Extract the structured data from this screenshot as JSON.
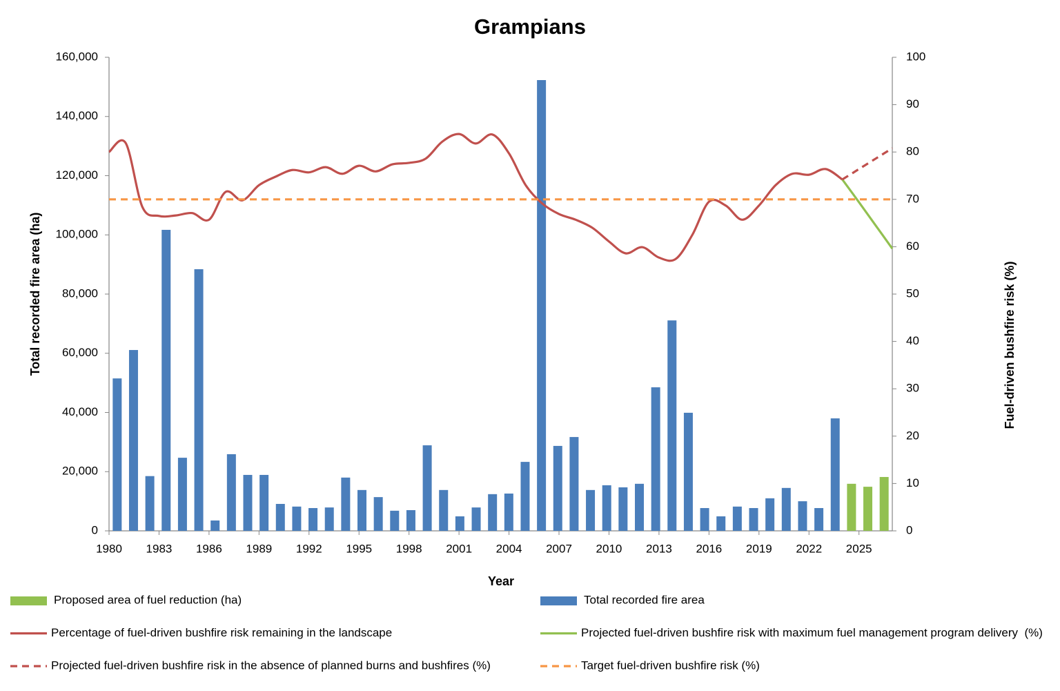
{
  "chart_data": {
    "type": "combo",
    "title": "Grampians",
    "x_label": "Year",
    "y_label": "Total recorded fire area (ha)",
    "y2_label": "Fuel-driven bushfire risk (%)",
    "x": [
      1980,
      1981,
      1982,
      1983,
      1984,
      1985,
      1986,
      1987,
      1988,
      1989,
      1990,
      1991,
      1992,
      1993,
      1994,
      1995,
      1996,
      1997,
      1998,
      1999,
      2000,
      2001,
      2002,
      2003,
      2004,
      2005,
      2006,
      2007,
      2008,
      2009,
      2010,
      2011,
      2012,
      2013,
      2014,
      2015,
      2016,
      2017,
      2018,
      2019,
      2020,
      2021,
      2022,
      2023,
      2024,
      2025,
      2026,
      2027
    ],
    "xlim": [
      1980,
      2027
    ],
    "xticks": [
      1980,
      1983,
      1986,
      1989,
      1992,
      1995,
      1998,
      2001,
      2004,
      2007,
      2010,
      2013,
      2016,
      2019,
      2022,
      2025
    ],
    "ylim": [
      0,
      160000
    ],
    "yticks": [
      0,
      {
        "value": 20000,
        "label": "20,000"
      },
      {
        "value": 40000,
        "label": "40,000"
      },
      {
        "value": 60000,
        "label": "60,000"
      },
      {
        "value": 80000,
        "label": "80,000"
      },
      {
        "value": 100000,
        "label": "100,000"
      },
      {
        "value": 120000,
        "label": "120,000"
      },
      {
        "value": 140000,
        "label": "140,000"
      },
      {
        "value": 160000,
        "label": "160,000"
      }
    ],
    "y2lim": [
      0,
      100
    ],
    "y2ticks": [
      0,
      10,
      20,
      30,
      40,
      50,
      60,
      70,
      80,
      90,
      100
    ],
    "series": [
      {
        "name": "Proposed area of fuel reduction (ha)",
        "kind": "bar",
        "color": "#92c050",
        "values": [
          null,
          null,
          null,
          null,
          null,
          null,
          null,
          null,
          null,
          null,
          null,
          null,
          null,
          null,
          null,
          null,
          null,
          null,
          null,
          null,
          null,
          null,
          null,
          null,
          null,
          null,
          null,
          null,
          null,
          null,
          null,
          null,
          null,
          null,
          null,
          null,
          null,
          null,
          null,
          null,
          null,
          null,
          null,
          null,
          null,
          15900,
          14900,
          18200
        ]
      },
      {
        "name": "Total recorded fire area",
        "kind": "bar",
        "color": "#4a7ebb",
        "values": [
          51500,
          61100,
          18500,
          101700,
          24700,
          88400,
          3500,
          25900,
          18900,
          18900,
          9100,
          8200,
          7700,
          7900,
          18000,
          13800,
          11400,
          6800,
          7000,
          28900,
          13800,
          4900,
          7900,
          12400,
          12600,
          23300,
          152300,
          28700,
          31700,
          13800,
          15400,
          14700,
          15900,
          48500,
          71100,
          39900,
          7700,
          4900,
          8200,
          7700,
          11000,
          14500,
          10000,
          7700,
          38000,
          null,
          null,
          null
        ]
      },
      {
        "name": "Percentage of fuel-driven bushfire risk remaining in the landscape",
        "kind": "line",
        "axis": "y2",
        "color": "#c0504d",
        "dashed": false,
        "values": [
          80.0,
          81.9,
          68.4,
          66.5,
          66.6,
          67.1,
          65.7,
          71.6,
          69.8,
          73.0,
          74.8,
          76.2,
          75.7,
          76.8,
          75.4,
          77.1,
          75.9,
          77.4,
          77.7,
          78.6,
          82.2,
          83.8,
          81.8,
          83.7,
          79.7,
          73.0,
          69.1,
          66.9,
          65.7,
          64.0,
          61.1,
          58.6,
          59.9,
          57.7,
          57.4,
          62.5,
          69.5,
          68.7,
          65.7,
          68.7,
          73.0,
          75.4,
          75.2,
          76.4,
          74.2,
          null,
          null,
          null
        ]
      },
      {
        "name": "Projected fuel-driven bushfire risk with maximum fuel management program delivery  (%)",
        "kind": "line",
        "axis": "y2",
        "color": "#92c050",
        "dashed": false,
        "values": [
          null,
          null,
          null,
          null,
          null,
          null,
          null,
          null,
          null,
          null,
          null,
          null,
          null,
          null,
          null,
          null,
          null,
          null,
          null,
          null,
          null,
          null,
          null,
          null,
          null,
          null,
          null,
          null,
          null,
          null,
          null,
          null,
          null,
          null,
          null,
          null,
          null,
          null,
          null,
          null,
          null,
          null,
          null,
          null,
          74.2,
          69.4,
          64.5,
          59.6
        ]
      },
      {
        "name": "Projected fuel-driven bushfire risk in the absence of planned burns and bushfires (%)",
        "kind": "line",
        "axis": "y2",
        "color": "#c0504d",
        "dashed": true,
        "values": [
          null,
          null,
          null,
          null,
          null,
          null,
          null,
          null,
          null,
          null,
          null,
          null,
          null,
          null,
          null,
          null,
          null,
          null,
          null,
          null,
          null,
          null,
          null,
          null,
          null,
          null,
          null,
          null,
          null,
          null,
          null,
          null,
          null,
          null,
          null,
          null,
          null,
          null,
          null,
          null,
          null,
          null,
          null,
          null,
          74.2,
          76.4,
          78.6,
          80.8
        ]
      },
      {
        "name": "Target fuel-driven bushfire risk (%)",
        "kind": "line",
        "axis": "y2",
        "color": "#f79646",
        "dashed": true,
        "values": [
          70,
          70,
          70,
          70,
          70,
          70,
          70,
          70,
          70,
          70,
          70,
          70,
          70,
          70,
          70,
          70,
          70,
          70,
          70,
          70,
          70,
          70,
          70,
          70,
          70,
          70,
          70,
          70,
          70,
          70,
          70,
          70,
          70,
          70,
          70,
          70,
          70,
          70,
          70,
          70,
          70,
          70,
          70,
          70,
          70,
          70,
          70,
          70
        ]
      }
    ]
  }
}
